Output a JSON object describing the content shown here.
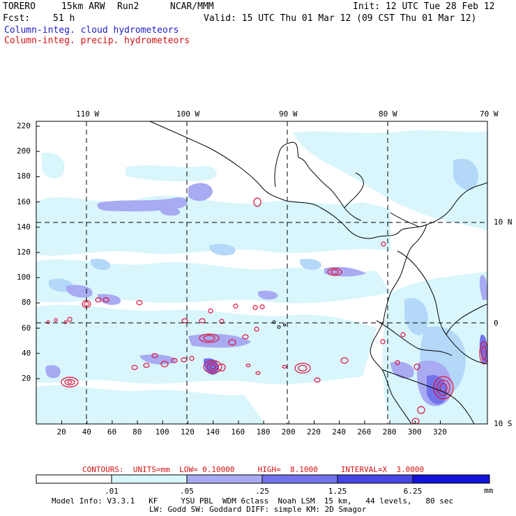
{
  "header": {
    "model": "TORERO",
    "resolution": "15km ARW",
    "run": "Run2",
    "org": "NCAR/MMM",
    "init": "Init: 12 UTC Tue 28 Feb 12",
    "fcst_label": "Fcst:",
    "fcst_value": "51 h",
    "valid": "Valid: 15 UTC Thu 01 Mar 12 (09 CST Thu 01 Mar 12)",
    "field_cloud": "Column-integ. cloud hydrometeors",
    "field_precip": "Column-integ. precip. hydrometeors"
  },
  "colors": {
    "cloud_text": "#1c1cc8",
    "precip_text": "#d01010",
    "contour": "#e0103a",
    "coast": "#000000",
    "fill_levels": [
      "#ffffff",
      "#d8f6fc",
      "#b4d8f8",
      "#a8aaf2",
      "#7272ec",
      "#4646e4",
      "#1414d8"
    ]
  },
  "map": {
    "lon_labels": [
      "110 W",
      "100 W",
      "90 W",
      "80 W",
      "70 W"
    ],
    "lat_labels": [
      "10 N",
      "0",
      "10 S"
    ],
    "y_ticks": [
      "220",
      "200",
      "180",
      "160",
      "140",
      "120",
      "100",
      "80",
      "60",
      "40",
      "20"
    ],
    "x_ticks": [
      "20",
      "40",
      "60",
      "80",
      "100",
      "120",
      "140",
      "160",
      "180",
      "200",
      "220",
      "240",
      "260",
      "280",
      "300",
      "320"
    ]
  },
  "contour_info": "CONTOURS:  UNITS=mm  LOW= 0.10000     HIGH=  8.1000     INTERVAL=X  3.0000",
  "colorbar": {
    "labels": [
      ".01",
      ".05",
      ".25",
      "1.25",
      "6.25"
    ],
    "unit": "mm"
  },
  "footer": {
    "line1": "Model Info: V3.3.1   KF     YSU PBL  WDM 6class  Noah LSM  15 km,   44 levels,   80 sec",
    "line2": "LW: Godd SW: Goddard DIFF: simple KM: 2D Smagor"
  }
}
